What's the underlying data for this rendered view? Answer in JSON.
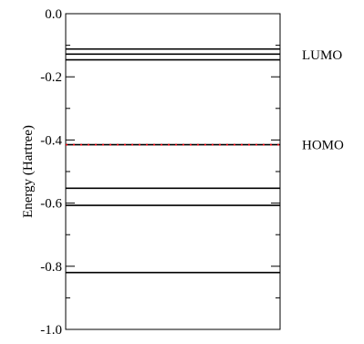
{
  "chart_data": {
    "type": "line",
    "title": "",
    "xlabel": "",
    "ylabel": "Energy (Hartree)",
    "ylim": [
      -1.0,
      0.0
    ],
    "y_major_ticks": [
      0.0,
      -0.2,
      -0.4,
      -0.6,
      -0.8,
      -1.0
    ],
    "y_tick_labels": [
      "0.0",
      "-0.2",
      "-0.4",
      "-0.6",
      "-0.8",
      "-1.0"
    ],
    "y_minor_ticks": [
      -0.1,
      -0.3,
      -0.5,
      -0.7,
      -0.9
    ],
    "grid": false,
    "legend": "none",
    "series": [
      {
        "values": [
          -0.112
        ],
        "color": "#000000",
        "style": "solid"
      },
      {
        "values": [
          -0.128
        ],
        "color": "#000000",
        "style": "solid"
      },
      {
        "values": [
          -0.146
        ],
        "color": "#000000",
        "style": "solid"
      },
      {
        "values": [
          -0.415
        ],
        "color": "#000000",
        "style": "solid",
        "overlay_color": "#e8000b",
        "overlay_style": "dotted"
      },
      {
        "values": [
          -0.553
        ],
        "color": "#000000",
        "style": "solid"
      },
      {
        "values": [
          -0.607
        ],
        "color": "#000000",
        "style": "solid"
      },
      {
        "values": [
          -0.82
        ],
        "color": "#000000",
        "style": "solid"
      }
    ],
    "annotations": [
      {
        "text": "LUMO",
        "y": -0.13
      },
      {
        "text": "HOMO",
        "y": -0.415
      }
    ]
  }
}
